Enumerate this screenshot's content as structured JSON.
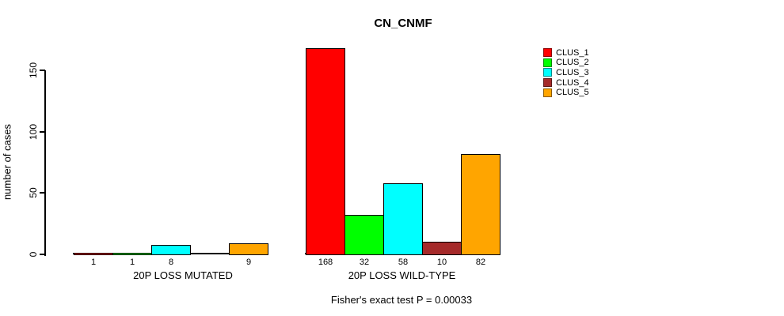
{
  "chart_data": {
    "type": "bar",
    "title": "CN_CNMF",
    "ylabel": "number of cases",
    "yticks": [
      0,
      50,
      100,
      150
    ],
    "axis_range": [
      0,
      150
    ],
    "grid": false,
    "legend_position": "top-right",
    "clusters": [
      {
        "name": "CLUS_1",
        "color": "#FF0000"
      },
      {
        "name": "CLUS_2",
        "color": "#00FF00"
      },
      {
        "name": "CLUS_3",
        "color": "#00FFFF"
      },
      {
        "name": "CLUS_4",
        "color": "#A52A2A"
      },
      {
        "name": "CLUS_5",
        "color": "#FFA500"
      }
    ],
    "groups": [
      {
        "label": "20P LOSS MUTATED",
        "values": [
          1,
          1,
          8,
          0,
          9
        ],
        "value_labels": [
          "1",
          "1",
          "8",
          "",
          "9"
        ]
      },
      {
        "label": "20P LOSS WILD-TYPE",
        "values": [
          168,
          32,
          58,
          10,
          82
        ],
        "value_labels": [
          "168",
          "32",
          "58",
          "10",
          "82"
        ]
      }
    ],
    "footnote": "Fisher's exact test P = 0.00033"
  }
}
